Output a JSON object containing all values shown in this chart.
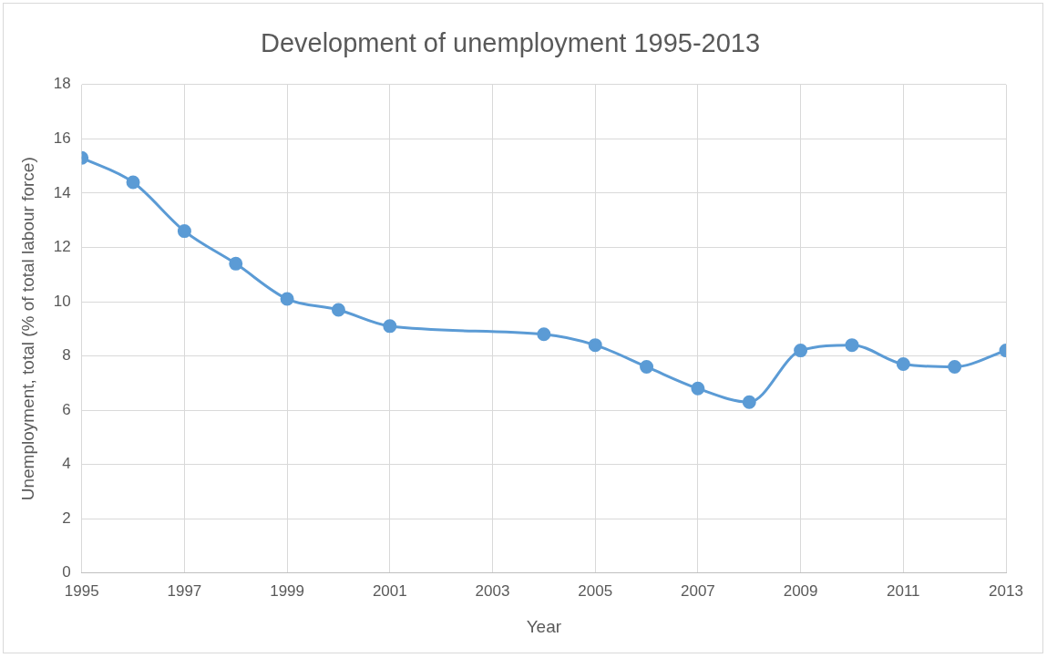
{
  "chart_data": {
    "type": "line",
    "title": "Development of unemployment 1995-2013",
    "xlabel": "Year",
    "ylabel": "Unemployment, total (% of total labour force)",
    "x": [
      1995,
      1996,
      1997,
      1998,
      1999,
      2000,
      2001,
      2004,
      2005,
      2006,
      2007,
      2008,
      2009,
      2010,
      2011,
      2012,
      2013
    ],
    "series": [
      {
        "color": "#5b9bd5",
        "values": [
          15.3,
          14.4,
          12.6,
          11.4,
          10.1,
          9.7,
          9.1,
          8.8,
          8.4,
          7.6,
          6.8,
          6.3,
          8.2,
          8.4,
          7.7,
          7.6,
          8.2
        ]
      }
    ],
    "xlim": [
      1995,
      2013
    ],
    "xticks": [
      1995,
      1997,
      1999,
      2001,
      2003,
      2005,
      2007,
      2009,
      2011,
      2013
    ],
    "ylim": [
      0,
      18
    ],
    "yticks": [
      0,
      2,
      4,
      6,
      8,
      10,
      12,
      14,
      16,
      18
    ],
    "grid": true,
    "legend": false,
    "marker": "circle",
    "line_style": "solid"
  }
}
